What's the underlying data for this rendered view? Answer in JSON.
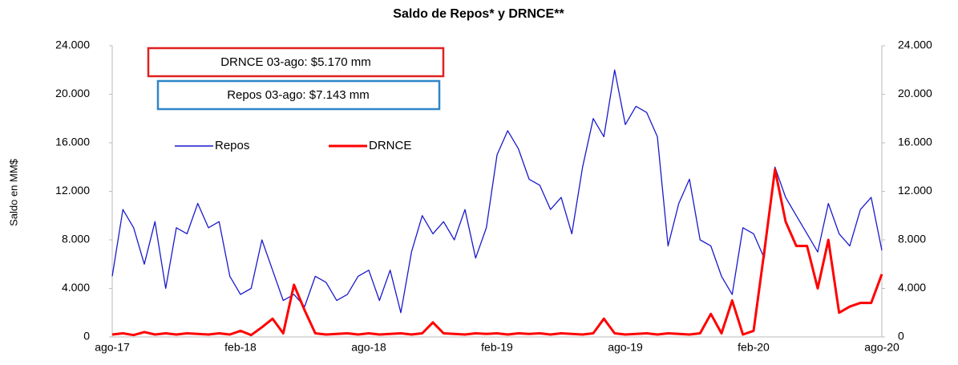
{
  "chart_data": {
    "type": "line",
    "title": "Saldo de Repos* y DRNCE**",
    "ylabel": "Saldo en MM$",
    "annotations": [
      "DRNCE 03-ago: $5.170 mm",
      "Repos 03-ago: $7.143 mm"
    ],
    "categories": [
      "ago-17",
      null,
      null,
      null,
      null,
      null,
      null,
      null,
      null,
      null,
      null,
      null,
      "feb-18",
      null,
      null,
      null,
      null,
      null,
      null,
      null,
      null,
      null,
      null,
      null,
      "ago-18",
      null,
      null,
      null,
      null,
      null,
      null,
      null,
      null,
      null,
      null,
      null,
      "feb-19",
      null,
      null,
      null,
      null,
      null,
      null,
      null,
      null,
      null,
      null,
      null,
      "ago-19",
      null,
      null,
      null,
      null,
      null,
      null,
      null,
      null,
      null,
      null,
      null,
      "feb-20",
      null,
      null,
      null,
      null,
      null,
      null,
      null,
      null,
      null,
      null,
      null,
      "ago-20"
    ],
    "series": [
      {
        "name": "Repos",
        "color": "#1a1acc",
        "values": [
          5000,
          10500,
          9000,
          6000,
          9500,
          4000,
          9000,
          8500,
          11000,
          9000,
          9500,
          5000,
          3500,
          4000,
          8000,
          5500,
          3000,
          3500,
          2500,
          5000,
          4500,
          3000,
          3500,
          5000,
          5500,
          3000,
          5500,
          2000,
          7000,
          10000,
          8500,
          9500,
          8000,
          10500,
          6500,
          9000,
          15000,
          17000,
          15500,
          13000,
          12500,
          10500,
          11500,
          8500,
          14000,
          18000,
          16500,
          22000,
          17500,
          19000,
          18500,
          16500,
          7500,
          11000,
          13000,
          8000,
          7500,
          5000,
          3500,
          9000,
          8500,
          6500,
          14000,
          11500,
          10000,
          8500,
          7000,
          11000,
          8500,
          7500,
          10500,
          11500,
          7143
        ]
      },
      {
        "name": "DRNCE",
        "color": "#ff0000",
        "values": [
          200,
          300,
          150,
          400,
          200,
          300,
          200,
          300,
          250,
          200,
          300,
          200,
          500,
          150,
          800,
          1500,
          300,
          4300,
          2200,
          300,
          200,
          250,
          300,
          200,
          300,
          200,
          250,
          300,
          200,
          300,
          1200,
          300,
          250,
          200,
          300,
          250,
          300,
          200,
          300,
          250,
          300,
          200,
          300,
          250,
          200,
          300,
          1500,
          300,
          200,
          250,
          300,
          200,
          300,
          250,
          200,
          300,
          1900,
          300,
          3000,
          200,
          500,
          7000,
          13800,
          9500,
          7500,
          7500,
          4000,
          8000,
          2000,
          2500,
          2800,
          2800,
          5170
        ]
      }
    ],
    "ylim": [
      0,
      24000
    ],
    "yticks": [
      0,
      {
        "value": 4000,
        "label": "4.000"
      },
      {
        "value": 8000,
        "label": "8.000"
      },
      {
        "value": 12000,
        "label": "12.000"
      },
      {
        "value": 16000,
        "label": "16.000"
      },
      {
        "value": 20000,
        "label": "20.000"
      },
      {
        "value": 24000,
        "label": "24.000"
      }
    ],
    "y2lim": [
      0,
      24000
    ],
    "y2ticks": [
      0,
      {
        "value": 4000,
        "label": "4.000"
      },
      {
        "value": 8000,
        "label": "8.000"
      },
      {
        "value": 12000,
        "label": "12.000"
      },
      {
        "value": 16000,
        "label": "16.000"
      },
      {
        "value": 20000,
        "label": "20.000"
      },
      {
        "value": 24000,
        "label": "24.000"
      }
    ],
    "grid": false
  }
}
